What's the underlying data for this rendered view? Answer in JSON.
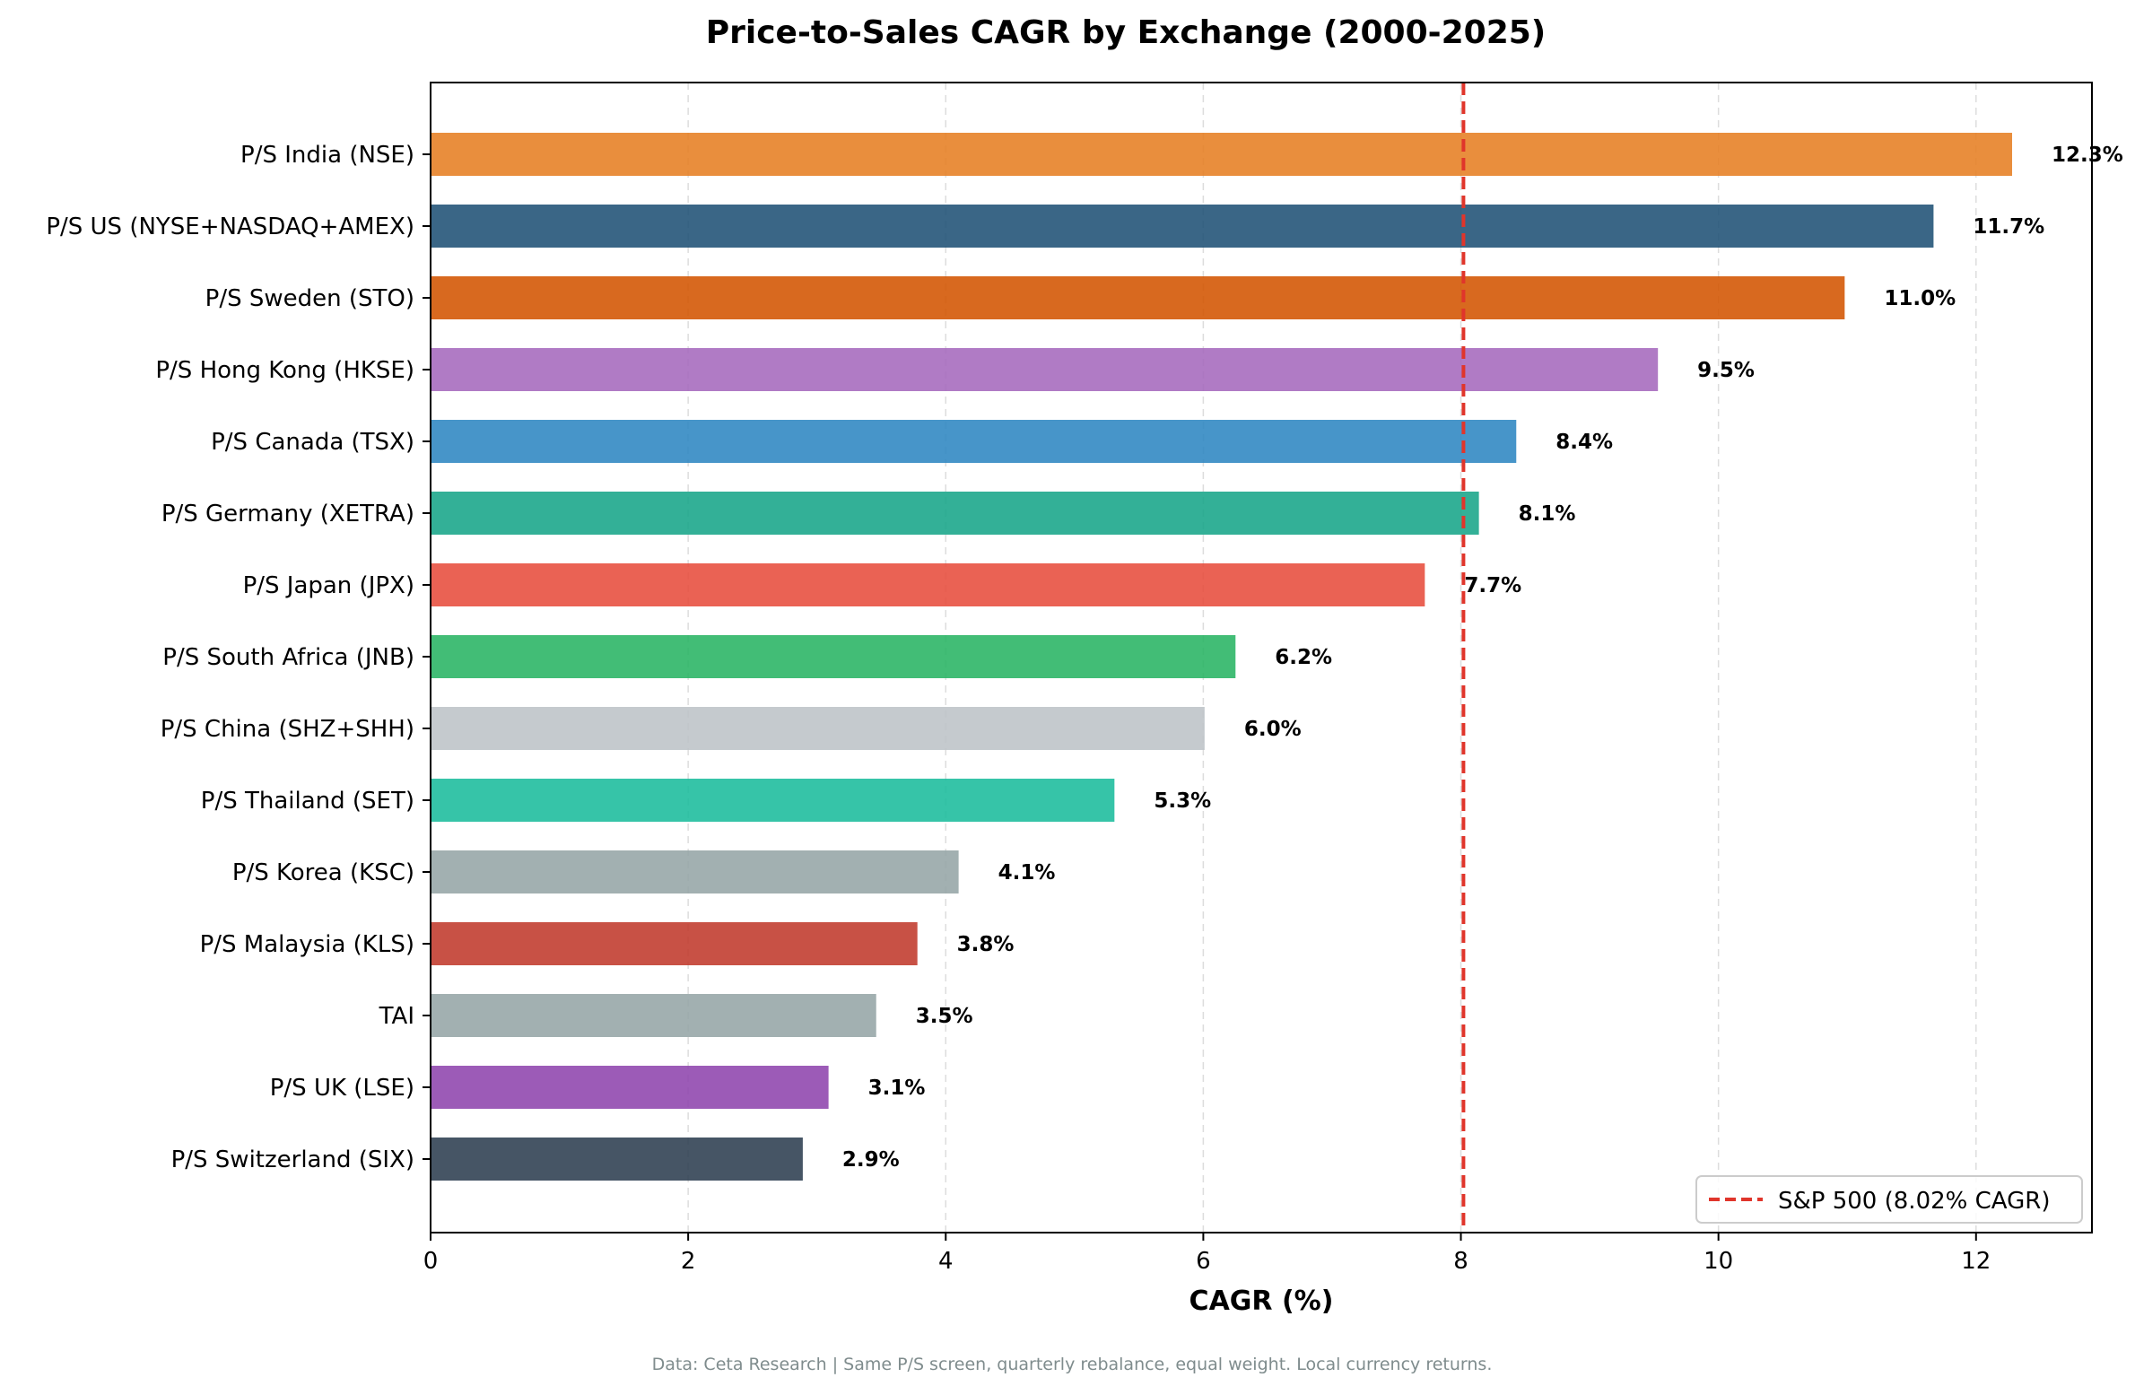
{
  "chart_data": {
    "type": "bar",
    "orientation": "horizontal",
    "title": "Price-to-Sales CAGR by Exchange (2000-2025)",
    "xlabel": "CAGR (%)",
    "ylabel": "",
    "xlim": [
      0,
      12.9
    ],
    "xticks": [
      0,
      2,
      4,
      6,
      8,
      10,
      12
    ],
    "grid": "x-dashed",
    "categories": [
      "P/S India (NSE)",
      "P/S US (NYSE+NASDAQ+AMEX)",
      "P/S Sweden (STO)",
      "P/S Hong Kong (HKSE)",
      "P/S Canada (TSX)",
      "P/S Germany (XETRA)",
      "P/S Japan (JPX)",
      "P/S South Africa (JNB)",
      "P/S China (SHZ+SHH)",
      "P/S Thailand (SET)",
      "P/S Korea (KSC)",
      "P/S Malaysia (KLS)",
      "TAI",
      "P/S UK (LSE)",
      "P/S Switzerland (SIX)"
    ],
    "values": [
      12.28,
      11.67,
      10.98,
      9.53,
      8.43,
      8.14,
      7.72,
      6.25,
      6.01,
      5.31,
      4.1,
      3.78,
      3.46,
      3.09,
      2.89
    ],
    "value_labels": [
      "12.3%",
      "11.7%",
      "11.0%",
      "9.5%",
      "8.4%",
      "8.1%",
      "7.7%",
      "6.2%",
      "6.0%",
      "5.3%",
      "4.1%",
      "3.8%",
      "3.5%",
      "3.1%",
      "2.9%"
    ],
    "colors": [
      "#e67e22",
      "#1f5175",
      "#d35400",
      "#a569bd",
      "#2e86c1",
      "#17a589",
      "#e74c3c",
      "#28b463",
      "#bdc3c7",
      "#1abc9c",
      "#95a5a6",
      "#c0392b",
      "#95a5a6",
      "#8e44ad",
      "#2c3e50"
    ],
    "reference_line": {
      "value": 8.02,
      "label": "S&P 500 (8.02% CAGR)",
      "color": "#e0352b",
      "style": "dashed"
    },
    "legend": {
      "position": "bottom-right"
    },
    "footnote": "Data: Ceta Research | Same P/S screen, quarterly rebalance, equal weight. Local currency returns."
  }
}
